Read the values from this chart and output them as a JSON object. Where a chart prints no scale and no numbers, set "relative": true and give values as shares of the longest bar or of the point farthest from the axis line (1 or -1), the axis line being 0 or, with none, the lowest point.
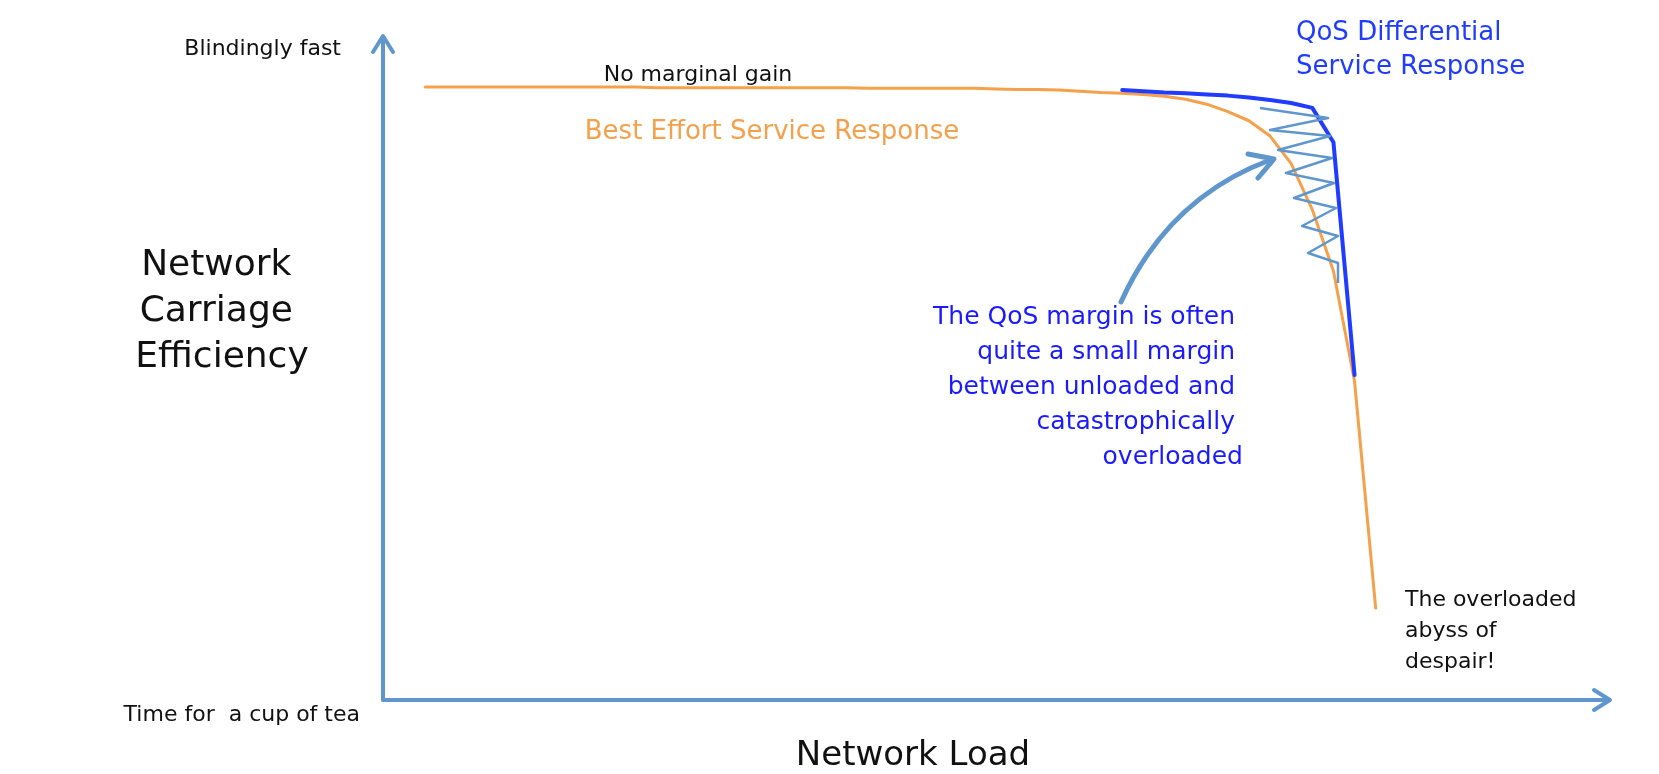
{
  "chart_data": {
    "type": "line",
    "relative": true,
    "xlabel": "Network Load",
    "ylabel": "Network Carriage Efficiency",
    "categories": [
      null,
      null,
      null,
      null,
      null,
      null,
      null,
      null,
      null,
      null,
      null,
      null,
      null,
      null,
      null,
      null,
      null,
      null,
      null,
      null,
      null,
      null,
      null,
      null,
      null,
      null,
      null,
      null,
      null,
      null,
      null,
      null,
      null,
      null,
      null,
      null,
      null,
      null,
      null,
      null,
      null,
      null,
      null,
      null,
      null,
      null,
      null,
      null,
      null,
      null,
      null,
      null,
      null,
      null,
      null,
      null,
      null,
      null,
      null
    ],
    "series": [
      {
        "name": "Best Effort Service Response",
        "color": "#f5a04a",
        "values": [
          null,
          null,
          1,
          1,
          1,
          1,
          1,
          1,
          1,
          1,
          1,
          1,
          1,
          0.999,
          0.999,
          0.999,
          0.999,
          0.999,
          0.999,
          0.999,
          0.999,
          0.999,
          0.999,
          0.998,
          0.998,
          0.998,
          0.998,
          0.998,
          0.998,
          0.997,
          0.996,
          0.996,
          0.995,
          0.993,
          0.991,
          0.99,
          0.988,
          0.985,
          0.98,
          0.972,
          0.96,
          0.945,
          0.92,
          0.875,
          0.8,
          0.7,
          0.52,
          0.15,
          null,
          null,
          null,
          null,
          null,
          null,
          null,
          null,
          null,
          null,
          null
        ]
      },
      {
        "name": "QoS Differential Service Response",
        "color": "#1f3cff",
        "values": [
          null,
          null,
          null,
          null,
          null,
          null,
          null,
          null,
          null,
          null,
          null,
          null,
          null,
          null,
          null,
          null,
          null,
          null,
          null,
          null,
          null,
          null,
          null,
          null,
          null,
          null,
          null,
          null,
          null,
          null,
          null,
          null,
          null,
          null,
          null,
          0.995,
          0.993,
          0.991,
          0.99,
          0.988,
          0.986,
          0.983,
          0.979,
          0.974,
          0.966,
          0.91,
          0.53,
          null,
          null,
          null,
          null,
          null,
          null,
          null,
          null,
          null,
          null,
          null,
          null
        ]
      }
    ],
    "annotations": [
      "Blindingly fast",
      "Time for  a cup of tea",
      "No marginal gain",
      "The QoS margin is often quite a small margin between unloaded and catastrophically overloaded",
      "The overloaded abyss of despair!"
    ],
    "legend": false,
    "grid": false,
    "marker": "none",
    "line_style": "solid"
  }
}
